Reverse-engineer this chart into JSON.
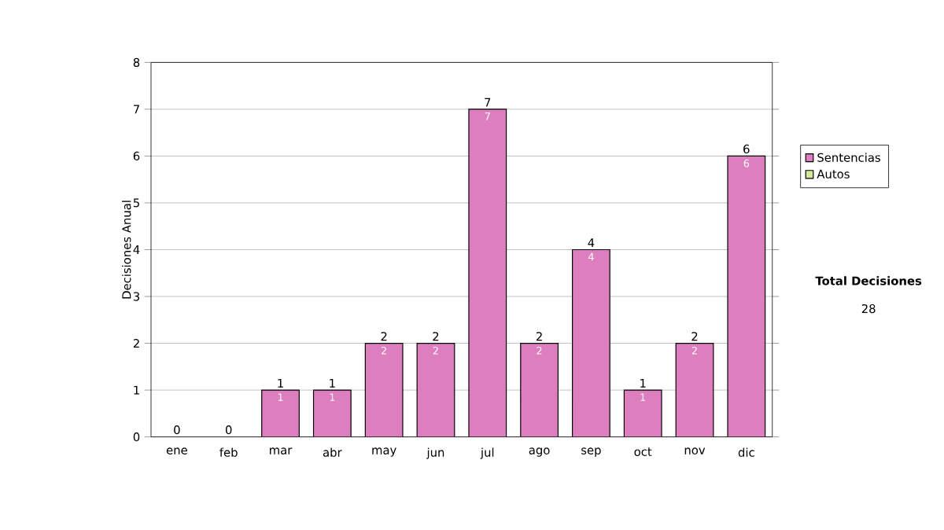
{
  "chart_data": {
    "type": "bar",
    "stacked": true,
    "ylabel": "Decisiones Anual",
    "categories": [
      "ene",
      "feb",
      "mar",
      "abr",
      "may",
      "jun",
      "jul",
      "ago",
      "sep",
      "oct",
      "nov",
      "dic"
    ],
    "series": [
      {
        "name": "Sentencias",
        "color": "#dd7fbf",
        "values": [
          0,
          0,
          1,
          1,
          2,
          2,
          7,
          2,
          4,
          1,
          2,
          6
        ],
        "value_labels": [
          null,
          null,
          "1",
          "1",
          "2",
          "2",
          "7",
          "2",
          "4",
          "1",
          "2",
          "6"
        ]
      },
      {
        "name": "Autos",
        "color": "#d4e89a",
        "values": [
          0,
          0,
          0,
          0,
          0,
          0,
          0,
          0,
          0,
          0,
          0,
          0
        ]
      }
    ],
    "totals": [
      "0",
      "0",
      "1",
      "1",
      "2",
      "2",
      "7",
      "2",
      "4",
      "1",
      "2",
      "6"
    ],
    "ylim": [
      0,
      8
    ],
    "yticks": [
      0,
      1,
      2,
      3,
      4,
      5,
      6,
      7,
      8
    ],
    "grid": "y",
    "legend": "right",
    "annotations": [
      "Total Decisiones",
      "28"
    ]
  }
}
